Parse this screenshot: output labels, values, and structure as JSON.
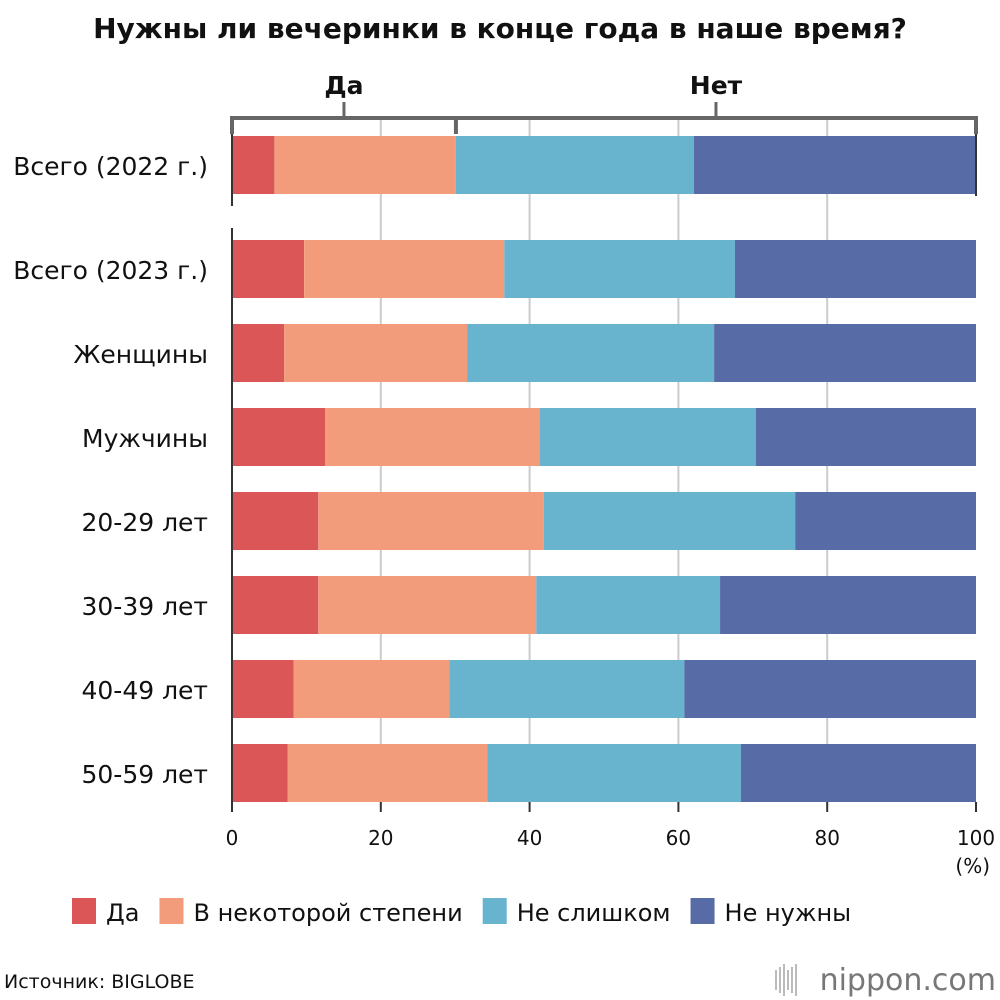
{
  "chart_data": {
    "type": "bar",
    "orientation": "horizontal",
    "stacked": true,
    "title": "Нужны ли вечеринки в конце года в наше время?",
    "categories": [
      "Всего (2022 г.)",
      "Всего (2023 г.)",
      "Женщины",
      "Мужчины",
      "20-29 лет",
      "30-39 лет",
      "40-49 лет",
      "50-59 лет"
    ],
    "series": [
      {
        "name": "Да",
        "color": "#db5656",
        "values": [
          5.7,
          9.7,
          7.0,
          12.5,
          11.6,
          11.6,
          8.3,
          7.5
        ]
      },
      {
        "name": "В некоторой степени",
        "color": "#f29c7b",
        "values": [
          24.4,
          26.9,
          24.6,
          28.9,
          30.3,
          29.3,
          20.9,
          26.8
        ]
      },
      {
        "name": "Не слишком",
        "color": "#68b3ce",
        "values": [
          32.0,
          31.0,
          33.2,
          29.0,
          33.8,
          24.7,
          31.6,
          34.1
        ]
      },
      {
        "name": "Не нужны",
        "color": "#576ba6",
        "values": [
          37.9,
          32.4,
          35.2,
          29.6,
          24.3,
          34.4,
          39.2,
          31.6
        ]
      }
    ],
    "xlim": [
      0,
      100
    ],
    "xticks": [
      "0",
      "20",
      "40",
      "60",
      "80",
      "100"
    ],
    "unit": "(%)",
    "grid": true,
    "legend": "bottom",
    "group_brackets": [
      {
        "label": "Да"
      },
      {
        "label": "Нет"
      }
    ]
  },
  "footer": {
    "source": "Источник: BIGLOBE",
    "logo": "nippon.com"
  }
}
